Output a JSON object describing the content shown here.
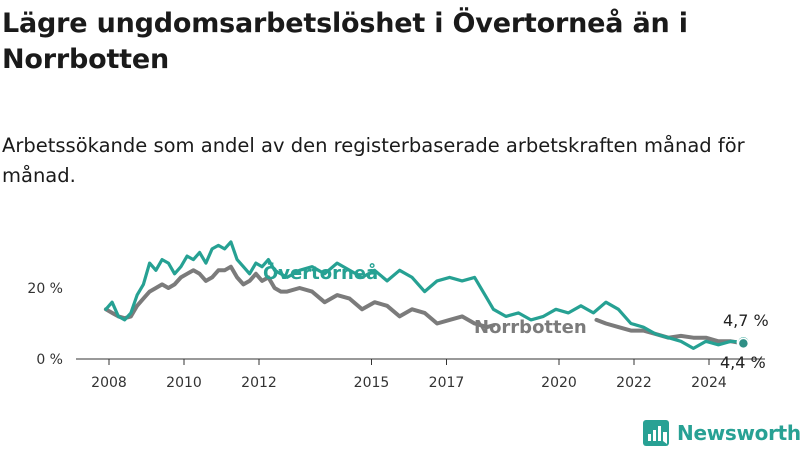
{
  "title": "Lägre ungdomsarbetslöshet i Övertorneå än i Norrbotten",
  "subtitle": "Arbetssökande som andel av den registerbaserade arbetskraften månad för månad.",
  "brand": {
    "name": "Newsworthy",
    "icon": "newsworthy-logo-icon"
  },
  "colors": {
    "overtornea": "#26a193",
    "norrbotten": "#7b7b7b",
    "axis": "#333333"
  },
  "chart_data": {
    "type": "line",
    "xlabel": "",
    "ylabel": "",
    "x_ticks": [
      "2008",
      "2010",
      "2012",
      "2015",
      "2017",
      "2020",
      "2022",
      "2024"
    ],
    "y_ticks": [
      "0 %",
      "20 %"
    ],
    "y_tick_values": [
      0,
      20
    ],
    "ylim": [
      0,
      35
    ],
    "xlim": [
      "2008-01",
      "2025-01"
    ],
    "grid": false,
    "legend": "inline labels",
    "end_labels": {
      "overtornea": "4,7 %",
      "norrbotten": "4,4 %"
    },
    "series": [
      {
        "name": "Övertorneå",
        "key": "overtornea",
        "points": [
          [
            "2007-12",
            14
          ],
          [
            "2008-02",
            16
          ],
          [
            "2008-04",
            12
          ],
          [
            "2008-06",
            11
          ],
          [
            "2008-08",
            13
          ],
          [
            "2008-10",
            18
          ],
          [
            "2008-12",
            21
          ],
          [
            "2009-02",
            27
          ],
          [
            "2009-04",
            25
          ],
          [
            "2009-06",
            28
          ],
          [
            "2009-08",
            27
          ],
          [
            "2009-10",
            24
          ],
          [
            "2009-12",
            26
          ],
          [
            "2010-02",
            29
          ],
          [
            "2010-04",
            28
          ],
          [
            "2010-06",
            30
          ],
          [
            "2010-08",
            27
          ],
          [
            "2010-10",
            31
          ],
          [
            "2010-12",
            32
          ],
          [
            "2011-02",
            31
          ],
          [
            "2011-04",
            33
          ],
          [
            "2011-06",
            28
          ],
          [
            "2011-08",
            26
          ],
          [
            "2011-10",
            24
          ],
          [
            "2011-12",
            27
          ],
          [
            "2012-02",
            26
          ],
          [
            "2012-04",
            28
          ],
          [
            "2012-06",
            25
          ],
          [
            "2012-08",
            24
          ],
          [
            "2012-10",
            23
          ],
          [
            "2013-02",
            25
          ],
          [
            "2013-06",
            26
          ],
          [
            "2013-10",
            24
          ],
          [
            "2014-02",
            27
          ],
          [
            "2014-06",
            25
          ],
          [
            "2014-10",
            23
          ],
          [
            "2015-02",
            25
          ],
          [
            "2015-06",
            22
          ],
          [
            "2015-10",
            25
          ],
          [
            "2016-02",
            23
          ],
          [
            "2016-06",
            19
          ],
          [
            "2016-10",
            22
          ],
          [
            "2017-02",
            23
          ],
          [
            "2017-06",
            22
          ],
          [
            "2017-10",
            23
          ],
          [
            "2018-02",
            17
          ],
          [
            "2018-04",
            14
          ],
          [
            "2018-08",
            12
          ],
          [
            "2018-12",
            13
          ],
          [
            "2019-04",
            11
          ],
          [
            "2019-08",
            12
          ],
          [
            "2019-12",
            14
          ],
          [
            "2020-04",
            13
          ],
          [
            "2020-08",
            15
          ],
          [
            "2020-12",
            13
          ],
          [
            "2021-04",
            16
          ],
          [
            "2021-08",
            14
          ],
          [
            "2021-12",
            10
          ],
          [
            "2022-04",
            9
          ],
          [
            "2022-08",
            7
          ],
          [
            "2022-12",
            6
          ],
          [
            "2023-04",
            5
          ],
          [
            "2023-08",
            3
          ],
          [
            "2023-12",
            5
          ],
          [
            "2024-04",
            4
          ],
          [
            "2024-08",
            5
          ],
          [
            "2024-12",
            4.7
          ]
        ]
      },
      {
        "name": "Norrbotten",
        "key": "norrbotten",
        "points": [
          [
            "2007-12",
            14
          ],
          [
            "2008-02",
            13
          ],
          [
            "2008-04",
            12
          ],
          [
            "2008-06",
            11.5
          ],
          [
            "2008-08",
            12
          ],
          [
            "2008-10",
            15
          ],
          [
            "2008-12",
            17
          ],
          [
            "2009-02",
            19
          ],
          [
            "2009-04",
            20
          ],
          [
            "2009-06",
            21
          ],
          [
            "2009-08",
            20
          ],
          [
            "2009-10",
            21
          ],
          [
            "2009-12",
            23
          ],
          [
            "2010-02",
            24
          ],
          [
            "2010-04",
            25
          ],
          [
            "2010-06",
            24
          ],
          [
            "2010-08",
            22
          ],
          [
            "2010-10",
            23
          ],
          [
            "2010-12",
            25
          ],
          [
            "2011-02",
            25
          ],
          [
            "2011-04",
            26
          ],
          [
            "2011-06",
            23
          ],
          [
            "2011-08",
            21
          ],
          [
            "2011-10",
            22
          ],
          [
            "2011-12",
            24
          ],
          [
            "2012-02",
            22
          ],
          [
            "2012-04",
            23
          ],
          [
            "2012-06",
            20
          ],
          [
            "2012-08",
            19
          ],
          [
            "2012-10",
            19
          ],
          [
            "2013-02",
            20
          ],
          [
            "2013-06",
            19
          ],
          [
            "2013-10",
            16
          ],
          [
            "2014-02",
            18
          ],
          [
            "2014-06",
            17
          ],
          [
            "2014-10",
            14
          ],
          [
            "2015-02",
            16
          ],
          [
            "2015-06",
            15
          ],
          [
            "2015-10",
            12
          ],
          [
            "2016-02",
            14
          ],
          [
            "2016-06",
            13
          ],
          [
            "2016-10",
            10
          ],
          [
            "2017-02",
            11
          ],
          [
            "2017-06",
            12
          ],
          [
            "2017-10",
            10
          ],
          [
            "2018-02",
            9
          ],
          [
            "2018-04",
            9.5
          ]
        ]
      },
      {
        "name": "",
        "key": "norrbotten",
        "points": [
          [
            "2021-01",
            11
          ],
          [
            "2021-04",
            10
          ],
          [
            "2021-08",
            9
          ],
          [
            "2021-12",
            8
          ],
          [
            "2022-04",
            8
          ],
          [
            "2022-08",
            7
          ],
          [
            "2022-12",
            6
          ],
          [
            "2023-04",
            6.5
          ],
          [
            "2023-08",
            6
          ],
          [
            "2023-12",
            6
          ],
          [
            "2024-04",
            5
          ],
          [
            "2024-08",
            5
          ],
          [
            "2024-12",
            4.4
          ]
        ]
      }
    ]
  }
}
